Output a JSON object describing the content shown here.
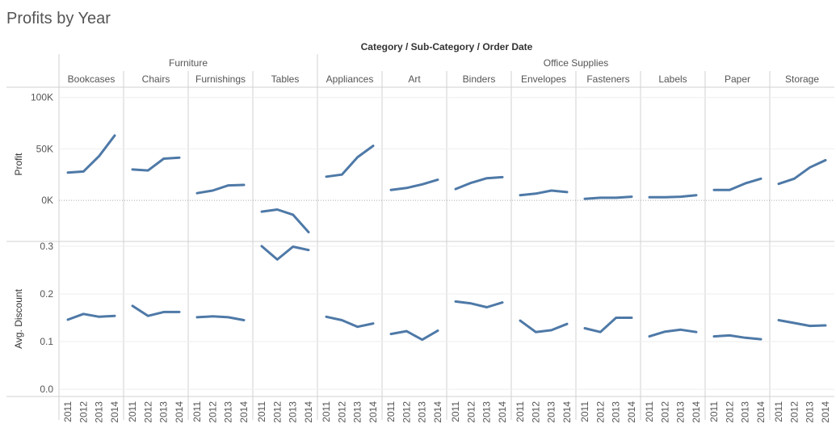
{
  "title": "Profits by Year",
  "colors": {
    "line": "#4e79a7",
    "grid": "#eeeeee",
    "divider": "#d0d0d0",
    "text": "#555555",
    "zero": "#aaaaaa"
  },
  "chart_data": {
    "type": "line",
    "column_header": "Category / Sub-Category / Order Date",
    "x_ticks": [
      "2011",
      "2012",
      "2013",
      "2014"
    ],
    "categories": [
      {
        "name": "Furniture",
        "subcategories": [
          "Bookcases",
          "Chairs",
          "Furnishings",
          "Tables"
        ]
      },
      {
        "name": "Office Supplies",
        "subcategories": [
          "Appliances",
          "Art",
          "Binders",
          "Envelopes",
          "Fasteners",
          "Labels",
          "Paper",
          "Storage"
        ]
      }
    ],
    "rows": [
      {
        "name": "Profit",
        "ylim": [
          -40000,
          110000
        ],
        "ticks": [
          0,
          50000,
          100000
        ],
        "tick_labels": [
          "0K",
          "50K",
          "100K"
        ],
        "zero_line": true,
        "series": [
          {
            "sub": "Bookcases",
            "values": [
              27000,
              28000,
              43000,
              63000
            ]
          },
          {
            "sub": "Chairs",
            "values": [
              30000,
              29000,
              40500,
              41500
            ]
          },
          {
            "sub": "Furnishings",
            "values": [
              7000,
              9500,
              14500,
              15000
            ]
          },
          {
            "sub": "Tables",
            "values": [
              -11000,
              -9000,
              -14000,
              -31000
            ]
          },
          {
            "sub": "Appliances",
            "values": [
              23000,
              25000,
              42000,
              53000
            ]
          },
          {
            "sub": "Art",
            "values": [
              10000,
              12000,
              15500,
              20000
            ]
          },
          {
            "sub": "Binders",
            "values": [
              11000,
              17000,
              21500,
              22500
            ]
          },
          {
            "sub": "Envelopes",
            "values": [
              5000,
              6500,
              9500,
              8000
            ]
          },
          {
            "sub": "Fasteners",
            "values": [
              1500,
              2500,
              2500,
              3500
            ]
          },
          {
            "sub": "Labels",
            "values": [
              3000,
              3000,
              3500,
              5000
            ]
          },
          {
            "sub": "Paper",
            "values": [
              10000,
              10000,
              16500,
              21000
            ]
          },
          {
            "sub": "Storage",
            "values": [
              16000,
              21000,
              32000,
              39000
            ]
          }
        ]
      },
      {
        "name": "Avg. Discount",
        "ylim": [
          -0.015,
          0.31
        ],
        "ticks": [
          0.0,
          0.1,
          0.2,
          0.3
        ],
        "tick_labels": [
          "0.0",
          "0.1",
          "0.2",
          "0.3"
        ],
        "zero_line": false,
        "series": [
          {
            "sub": "Bookcases",
            "values": [
              0.146,
              0.158,
              0.152,
              0.154
            ]
          },
          {
            "sub": "Chairs",
            "values": [
              0.175,
              0.154,
              0.162,
              0.162
            ]
          },
          {
            "sub": "Furnishings",
            "values": [
              0.151,
              0.153,
              0.151,
              0.145
            ]
          },
          {
            "sub": "Tables",
            "values": [
              0.3,
              0.272,
              0.299,
              0.292
            ]
          },
          {
            "sub": "Appliances",
            "values": [
              0.152,
              0.145,
              0.131,
              0.138
            ]
          },
          {
            "sub": "Art",
            "values": [
              0.116,
              0.122,
              0.104,
              0.123
            ]
          },
          {
            "sub": "Binders",
            "values": [
              0.184,
              0.18,
              0.172,
              0.182
            ]
          },
          {
            "sub": "Envelopes",
            "values": [
              0.144,
              0.12,
              0.124,
              0.137
            ]
          },
          {
            "sub": "Fasteners",
            "values": [
              0.128,
              0.12,
              0.15,
              0.15
            ]
          },
          {
            "sub": "Labels",
            "values": [
              0.111,
              0.121,
              0.125,
              0.12
            ]
          },
          {
            "sub": "Paper",
            "values": [
              0.111,
              0.113,
              0.108,
              0.105
            ]
          },
          {
            "sub": "Storage",
            "values": [
              0.145,
              0.139,
              0.133,
              0.134
            ]
          }
        ]
      }
    ]
  }
}
